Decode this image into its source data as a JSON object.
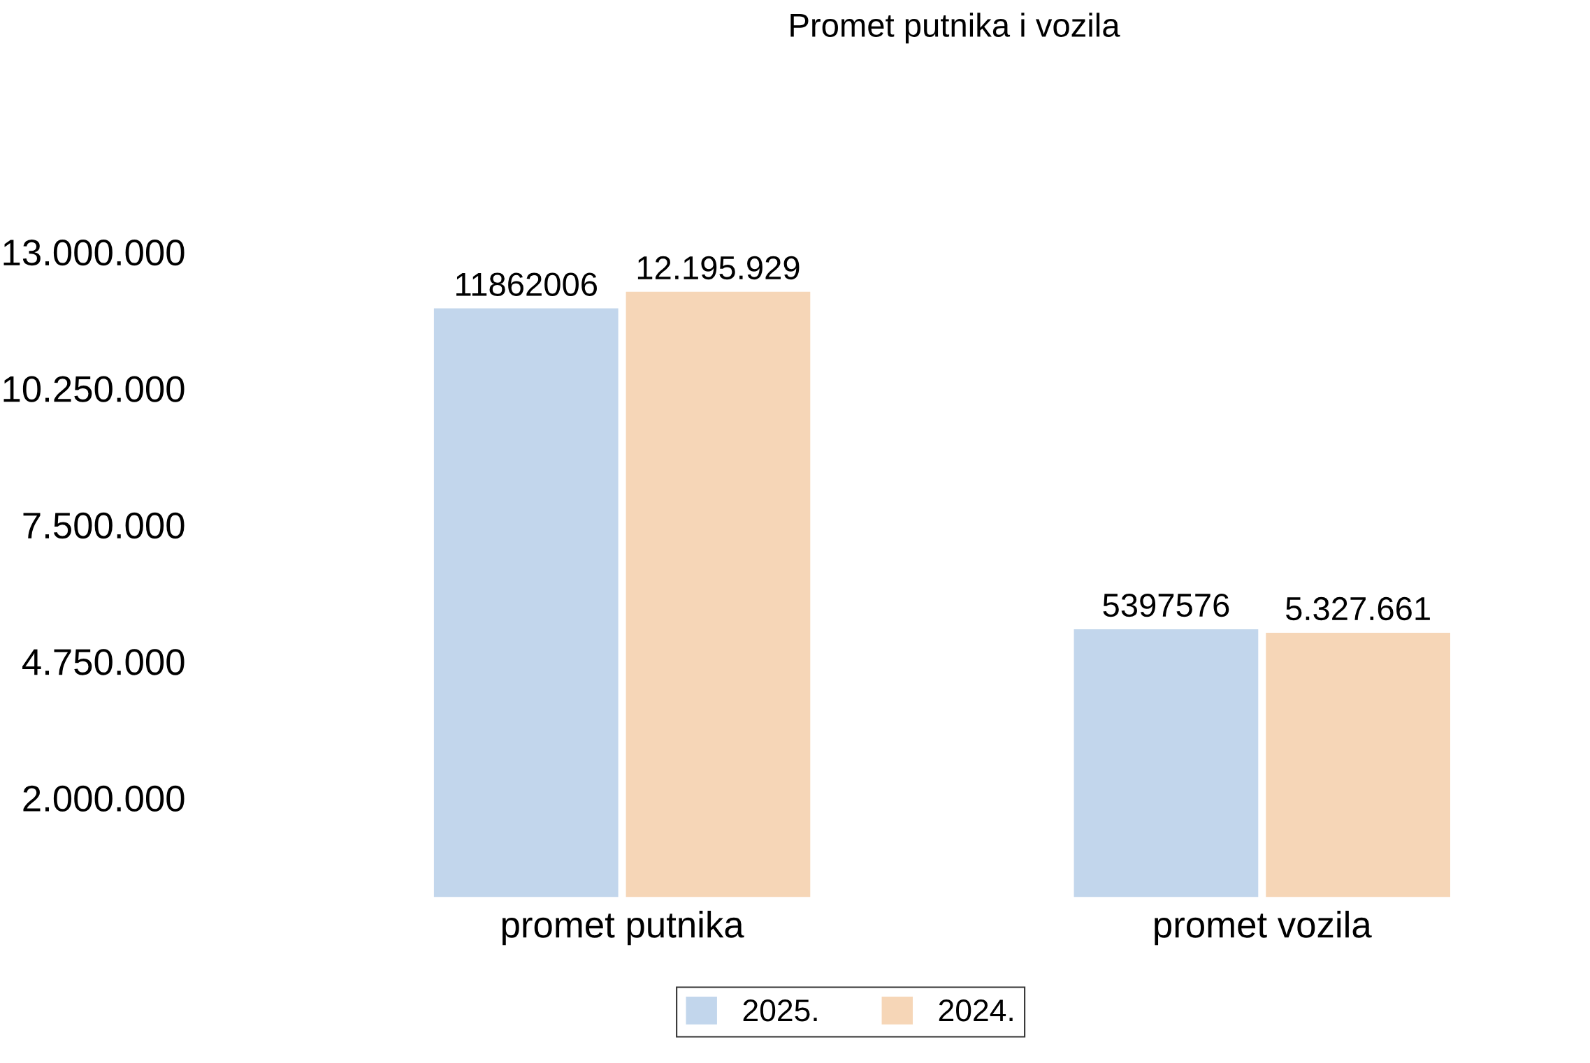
{
  "chart_data": {
    "type": "bar",
    "title": "Promet putnika i vozila",
    "categories": [
      "promet putnika",
      "promet vozila"
    ],
    "series": [
      {
        "name": "2025.",
        "color": "#c2d6ec",
        "values": [
          11862006,
          5397576
        ],
        "value_labels": [
          "11862006",
          "5397576"
        ]
      },
      {
        "name": "2024.",
        "color": "#f6d6b7",
        "values": [
          12195929,
          5327661
        ],
        "value_labels": [
          "12.195.929",
          "5.327.661"
        ]
      }
    ],
    "ylim": [
      0,
      13000000
    ],
    "yticks": [
      {
        "value": 2000000,
        "label": "2.000.000"
      },
      {
        "value": 4750000,
        "label": "4.750.000"
      },
      {
        "value": 7500000,
        "label": "7.500.000"
      },
      {
        "value": 10250000,
        "label": "10.250.000"
      },
      {
        "value": 13000000,
        "label": "13.000.000"
      }
    ],
    "legend": "bottom"
  }
}
